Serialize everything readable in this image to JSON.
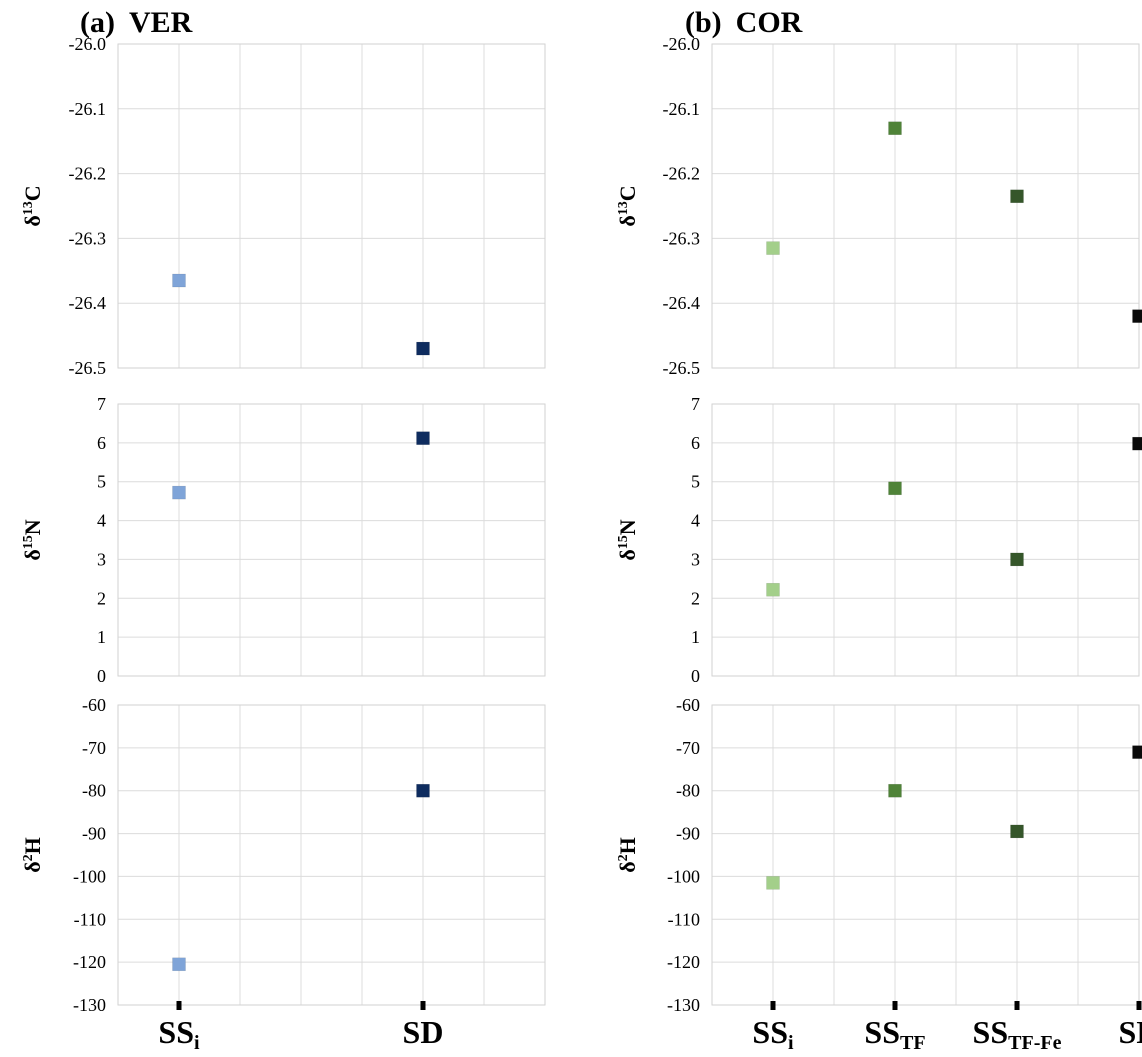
{
  "chart_data": [
    {
      "panel": "(a)",
      "title": "VER",
      "type": "scatter",
      "categories": [
        "SS",
        "SD"
      ],
      "category_subscripts": [
        "i",
        ""
      ],
      "category_colors": [
        "#7fa4d8",
        "#0e2c5f"
      ],
      "rows": [
        {
          "ylabel": "δ",
          "ylabel_sup": "13",
          "ylabel_elem": "C",
          "ylim": [
            -26.5,
            -26.0
          ],
          "yticks": [
            "-26.0",
            "-26.1",
            "-26.2",
            "-26.3",
            "-26.4",
            "-26.5"
          ],
          "values": [
            -26.365,
            -26.47
          ]
        },
        {
          "ylabel": "δ",
          "ylabel_sup": "15",
          "ylabel_elem": "N",
          "ylim": [
            0,
            7
          ],
          "yticks": [
            "7",
            "6",
            "5",
            "4",
            "3",
            "2",
            "1",
            "0"
          ],
          "values": [
            4.72,
            6.12
          ]
        },
        {
          "ylabel": "δ",
          "ylabel_sup": "2",
          "ylabel_elem": "H",
          "ylim": [
            -130,
            -60
          ],
          "yticks": [
            "-60",
            "-70",
            "-80",
            "-90",
            "-100",
            "-110",
            "-120",
            "-130"
          ],
          "values": [
            -120.5,
            -80
          ]
        }
      ]
    },
    {
      "panel": "(b)",
      "title": "COR",
      "type": "scatter",
      "categories": [
        "SS",
        "SS",
        "SS",
        "SD"
      ],
      "category_subscripts": [
        "i",
        "TF",
        "TF-Fe",
        ""
      ],
      "category_colors": [
        "#a3cf8a",
        "#4f8338",
        "#35562a",
        "#0a0a0a"
      ],
      "rows": [
        {
          "ylabel": "δ",
          "ylabel_sup": "13",
          "ylabel_elem": "C",
          "ylim": [
            -26.5,
            -26.0
          ],
          "yticks": [
            "-26.0",
            "-26.1",
            "-26.2",
            "-26.3",
            "-26.4",
            "-26.5"
          ],
          "values": [
            -26.315,
            -26.13,
            -26.235,
            -26.42
          ]
        },
        {
          "ylabel": "δ",
          "ylabel_sup": "15",
          "ylabel_elem": "N",
          "ylim": [
            0,
            7
          ],
          "yticks": [
            "7",
            "6",
            "5",
            "4",
            "3",
            "2",
            "1",
            "0"
          ],
          "values": [
            2.22,
            4.83,
            3.0,
            5.98
          ]
        },
        {
          "ylabel": "δ",
          "ylabel_sup": "2",
          "ylabel_elem": "H",
          "ylim": [
            -130,
            -60
          ],
          "yticks": [
            "-60",
            "-70",
            "-80",
            "-90",
            "-100",
            "-110",
            "-120",
            "-130"
          ],
          "values": [
            -101.5,
            -80,
            -89.5,
            -71
          ]
        }
      ]
    }
  ]
}
